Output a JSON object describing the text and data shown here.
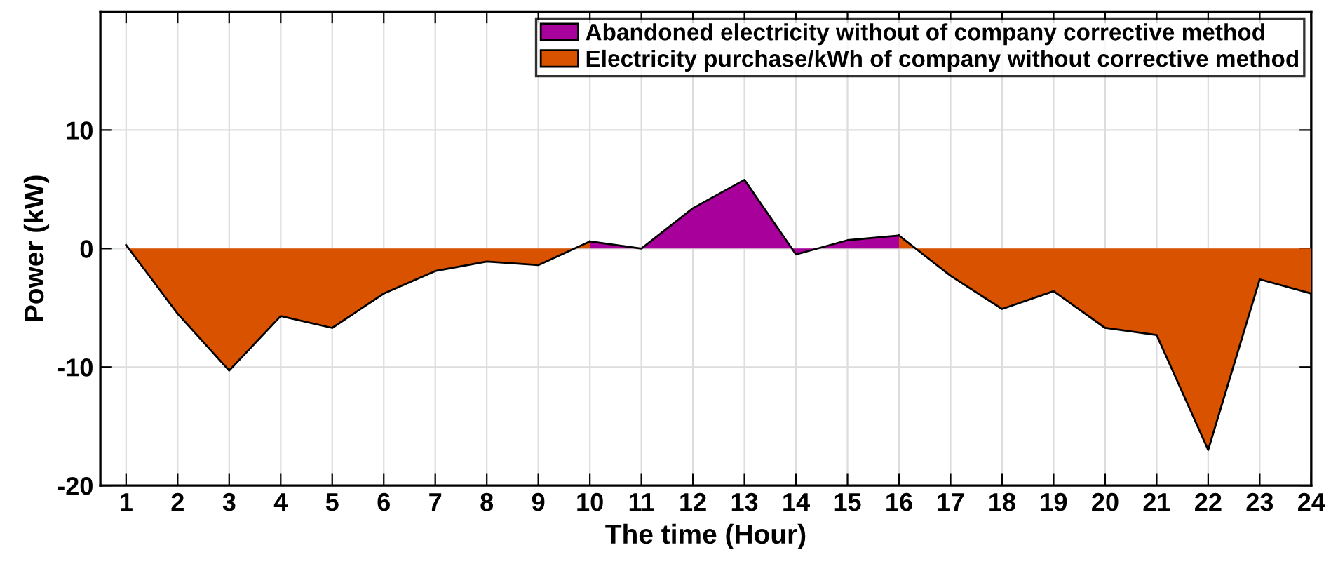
{
  "chart_data": {
    "type": "area",
    "xlabel": "The time (Hour)",
    "ylabel": "Power (kW)",
    "x": [
      1,
      2,
      3,
      4,
      5,
      6,
      7,
      8,
      9,
      10,
      11,
      12,
      13,
      14,
      15,
      16,
      17,
      18,
      19,
      20,
      21,
      22,
      23,
      24
    ],
    "series": [
      {
        "name": "Abandoned electricity without of company corrective method",
        "color": "#a8009a",
        "values": [
          null,
          null,
          null,
          null,
          null,
          null,
          null,
          null,
          null,
          0.6,
          0,
          3.4,
          5.8,
          -0.5,
          0.7,
          1.1,
          null,
          null,
          null,
          null,
          null,
          null,
          null,
          null
        ]
      },
      {
        "name": "Electricity purchase/kWh of company without corrective method",
        "color": "#d95200",
        "values": [
          0.3,
          -5.5,
          -10.3,
          -5.7,
          -6.7,
          -3.8,
          -1.9,
          -1.1,
          -1.4,
          0.6,
          null,
          null,
          null,
          null,
          null,
          1.1,
          -2.3,
          -5.1,
          -3.6,
          -6.7,
          -7.3,
          -17,
          -2.6,
          -3.8
        ]
      }
    ],
    "xlim": [
      0.5,
      24
    ],
    "xticks": [
      1,
      2,
      3,
      4,
      5,
      6,
      7,
      8,
      9,
      10,
      11,
      12,
      13,
      14,
      15,
      16,
      17,
      18,
      19,
      20,
      21,
      22,
      23,
      24
    ],
    "ylim": [
      -20,
      20
    ],
    "yticks": [
      -20,
      -10,
      0,
      10
    ],
    "grid": true,
    "legend": "top right"
  }
}
